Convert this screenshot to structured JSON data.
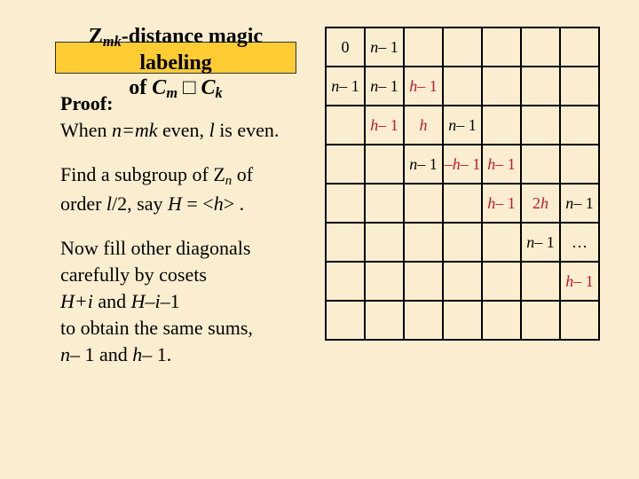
{
  "title": {
    "line1_pre": "Z",
    "line1_sub": "mk",
    "line1_post": "-distance magic labeling",
    "line2_pre": "of ",
    "line2_c1": "C",
    "line2_sub1": "m",
    "line2_sq": " □ ",
    "line2_c2": "C",
    "line2_sub2": "k"
  },
  "proof": {
    "label": "Proof:",
    "when_pre": "When ",
    "when_eq": "n=mk",
    "when_mid": " even, ",
    "when_l": "l",
    "when_post": " is even."
  },
  "subgroup": {
    "l1_pre": "Find a subgroup of  Z",
    "l1_sub": "n",
    "l1_post": " of",
    "l2_pre": "order ",
    "l2_l": "l",
    "l2_mid": "/2, say ",
    "l2_H": "H",
    "l2_eq": " = <",
    "l2_h": "h",
    "l2_post": "> ."
  },
  "fill": {
    "l1": "Now fill other diagonals",
    "l2": "carefully by cosets",
    "l3_Hplus": "H+i",
    "l3_and": " and  ",
    "l3_Hminus": "H–i–",
    "l3_one": "1",
    "l4": "to obtain the same sums,",
    "l5_n": "n",
    "l5_mid": "– 1 and ",
    "l5_h": "h",
    "l5_post": "– 1."
  },
  "grid": {
    "rows": 8,
    "cols": 7,
    "cells": {
      "0,0": {
        "type": "plain",
        "text": "0"
      },
      "0,1": {
        "type": "var",
        "v": "n",
        "suffix": "– 1"
      },
      "1,0": {
        "type": "var",
        "v": "n",
        "suffix": "– 1"
      },
      "1,1": {
        "type": "var",
        "v": "n",
        "suffix": "– 1"
      },
      "1,2": {
        "type": "var",
        "v": "h",
        "suffix": "– 1",
        "red": true
      },
      "2,1": {
        "type": "var",
        "v": "h",
        "suffix": "– 1",
        "red": true
      },
      "2,2": {
        "type": "var",
        "v": "h",
        "red": true
      },
      "2,3": {
        "type": "var",
        "v": "n",
        "suffix": "– 1"
      },
      "3,2": {
        "type": "var",
        "v": "n",
        "suffix": "– 1"
      },
      "3,3": {
        "type": "varpre",
        "pre": "–",
        "v": "h",
        "suffix": "– 1",
        "red": true
      },
      "3,4": {
        "type": "var",
        "v": "h",
        "suffix": "– 1",
        "red": true
      },
      "4,4": {
        "type": "var",
        "v": "h",
        "suffix": "– 1",
        "red": true
      },
      "4,5": {
        "type": "varpre",
        "pre": "2",
        "v": "h",
        "red": true
      },
      "4,6": {
        "type": "var",
        "v": "n",
        "suffix": "– 1"
      },
      "5,5": {
        "type": "var",
        "v": "n",
        "suffix": "– 1"
      },
      "5,6": {
        "type": "plain",
        "text": "…"
      },
      "6,6": {
        "type": "var",
        "v": "h",
        "suffix": "– 1",
        "red": true
      }
    }
  }
}
